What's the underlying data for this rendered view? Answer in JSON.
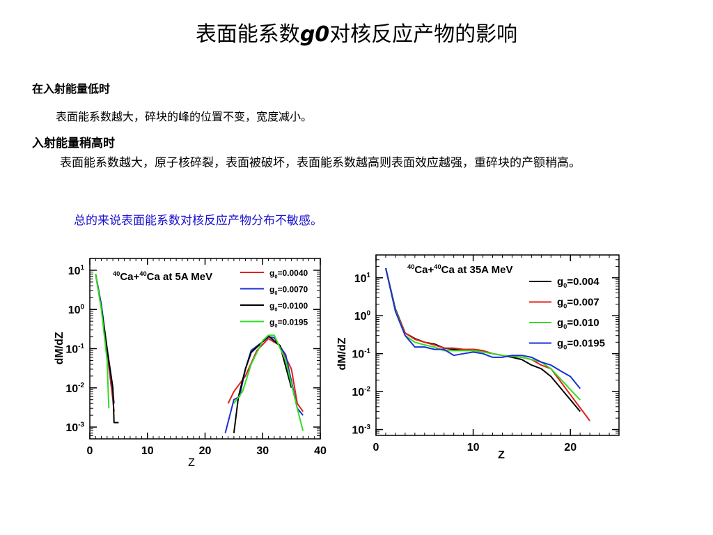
{
  "slide": {
    "title_pre": "表面能系数",
    "title_g": "g0",
    "title_post": "对核反应产物的影响",
    "low_energy_heading": "在入射能量低时",
    "low_energy_text": "表面能系数越大，碎块的峰的位置不变，宽度减小。",
    "high_energy_heading": "入射能量稍高时",
    "high_energy_text": "表面能系数越大，原子核碎裂，表面被破坏，表面能系数越高则表面效应越强，重碎块的产额稍高。",
    "summary": "总的来说表面能系数对核反应产物分布不敏感。",
    "summary_color": "#1a10d0"
  },
  "chart_data": [
    {
      "type": "line",
      "y_scale": "log",
      "annotation": "40Ca+40Ca at 5A MeV",
      "xlabel": "Z",
      "ylabel": "dM/dZ",
      "xlim": [
        0,
        40
      ],
      "ylim": [
        0.0005,
        20
      ],
      "x_ticks": [
        0,
        10,
        20,
        30,
        40
      ],
      "y_ticks": [
        0.001,
        0.01,
        0.1,
        1,
        10
      ],
      "legend_position": "top-right",
      "series": [
        {
          "name": "g0=0.0040",
          "color": "#e0201a",
          "segments": [
            [
              [
                1,
                8
              ],
              [
                2,
                1.2
              ],
              [
                3,
                0.08
              ],
              [
                4,
                0.005
              ],
              [
                4.2,
                0.0025
              ]
            ],
            [
              [
                24,
                0.004
              ],
              [
                25,
                0.008
              ],
              [
                27,
                0.02
              ],
              [
                29,
                0.09
              ],
              [
                31,
                0.18
              ],
              [
                33,
                0.12
              ],
              [
                35,
                0.03
              ],
              [
                36,
                0.004
              ],
              [
                37,
                0.0025
              ]
            ]
          ]
        },
        {
          "name": "g0=0.0070",
          "color": "#1a30d0",
          "segments": [
            [
              [
                1,
                8
              ],
              [
                2,
                1.3
              ],
              [
                3,
                0.1
              ],
              [
                4,
                0.008
              ],
              [
                4.2,
                0.004
              ]
            ],
            [
              [
                23.5,
                0.0007
              ],
              [
                25,
                0.005
              ],
              [
                26,
                0.006
              ],
              [
                27,
                0.03
              ],
              [
                28,
                0.09
              ],
              [
                30,
                0.15
              ],
              [
                31,
                0.2
              ],
              [
                32,
                0.19
              ],
              [
                34,
                0.07
              ],
              [
                36,
                0.003
              ],
              [
                37,
                0.002
              ]
            ]
          ]
        },
        {
          "name": "g0=0.0100",
          "color": "#000000",
          "segments": [
            [
              [
                1,
                8
              ],
              [
                2,
                1.1
              ],
              [
                3,
                0.1
              ],
              [
                4,
                0.01
              ],
              [
                4.2,
                0.0013
              ],
              [
                5,
                0.0013
              ]
            ],
            [
              [
                25,
                0.0007
              ],
              [
                25.8,
                0.006
              ],
              [
                27,
                0.03
              ],
              [
                28,
                0.08
              ],
              [
                30,
                0.15
              ],
              [
                31,
                0.21
              ],
              [
                33,
                0.12
              ],
              [
                35,
                0.01
              ]
            ]
          ]
        },
        {
          "name": "g0=0.0195",
          "color": "#33dd22",
          "segments": [
            [
              [
                1,
                8
              ],
              [
                2,
                1
              ],
              [
                3,
                0.05
              ],
              [
                3.3,
                0.003
              ]
            ],
            [
              [
                25,
                0.004
              ],
              [
                26.5,
                0.008
              ],
              [
                28,
                0.04
              ],
              [
                30,
                0.16
              ],
              [
                31,
                0.22
              ],
              [
                32,
                0.22
              ],
              [
                34,
                0.05
              ],
              [
                36,
                0.003
              ],
              [
                37,
                0.0008
              ]
            ]
          ]
        }
      ]
    },
    {
      "type": "line",
      "y_scale": "log",
      "annotation": "40Ca+40Ca at 35A MeV",
      "xlabel": "Z",
      "ylabel": "dM/dZ",
      "xlim": [
        0,
        25
      ],
      "ylim": [
        0.0007,
        40
      ],
      "x_ticks": [
        0,
        10,
        20
      ],
      "y_ticks": [
        0.001,
        0.01,
        0.1,
        1,
        10
      ],
      "legend_position": "top-right",
      "series": [
        {
          "name": "g0=0.004",
          "color": "#000000",
          "points": [
            [
              1,
              18
            ],
            [
              2,
              1.5
            ],
            [
              3,
              0.35
            ],
            [
              4,
              0.25
            ],
            [
              5,
              0.2
            ],
            [
              6,
              0.18
            ],
            [
              7,
              0.14
            ],
            [
              8,
              0.13
            ],
            [
              9,
              0.13
            ],
            [
              10,
              0.13
            ],
            [
              11,
              0.12
            ],
            [
              12,
              0.1
            ],
            [
              13,
              0.09
            ],
            [
              14,
              0.08
            ],
            [
              15,
              0.07
            ],
            [
              16,
              0.05
            ],
            [
              17,
              0.04
            ],
            [
              18,
              0.025
            ],
            [
              21,
              0.003
            ]
          ]
        },
        {
          "name": "g0=0.007",
          "color": "#e0201a",
          "points": [
            [
              1,
              18
            ],
            [
              2,
              1.4
            ],
            [
              3,
              0.35
            ],
            [
              4,
              0.24
            ],
            [
              5,
              0.2
            ],
            [
              6,
              0.17
            ],
            [
              7,
              0.14
            ],
            [
              8,
              0.14
            ],
            [
              9,
              0.13
            ],
            [
              10,
              0.13
            ],
            [
              11,
              0.12
            ],
            [
              12,
              0.1
            ],
            [
              13,
              0.09
            ],
            [
              14,
              0.085
            ],
            [
              15,
              0.08
            ],
            [
              16,
              0.07
            ],
            [
              17,
              0.05
            ],
            [
              18,
              0.04
            ],
            [
              22,
              0.0017
            ]
          ]
        },
        {
          "name": "g0=0.010",
          "color": "#33dd22",
          "points": [
            [
              1,
              18
            ],
            [
              2,
              1.4
            ],
            [
              3,
              0.3
            ],
            [
              4,
              0.2
            ],
            [
              5,
              0.17
            ],
            [
              6,
              0.15
            ],
            [
              7,
              0.12
            ],
            [
              8,
              0.12
            ],
            [
              9,
              0.12
            ],
            [
              10,
              0.12
            ],
            [
              11,
              0.11
            ],
            [
              12,
              0.1
            ],
            [
              13,
              0.09
            ],
            [
              14,
              0.085
            ],
            [
              15,
              0.08
            ],
            [
              16,
              0.07
            ],
            [
              17,
              0.06
            ],
            [
              18,
              0.04
            ],
            [
              21,
              0.006
            ]
          ]
        },
        {
          "name": "g0=0.0195",
          "color": "#1a30d0",
          "points": [
            [
              1,
              18
            ],
            [
              2,
              1.3
            ],
            [
              3,
              0.3
            ],
            [
              4,
              0.15
            ],
            [
              5,
              0.15
            ],
            [
              6,
              0.13
            ],
            [
              7,
              0.13
            ],
            [
              8,
              0.09
            ],
            [
              9,
              0.1
            ],
            [
              10,
              0.11
            ],
            [
              11,
              0.1
            ],
            [
              12,
              0.08
            ],
            [
              13,
              0.08
            ],
            [
              14,
              0.09
            ],
            [
              15,
              0.09
            ],
            [
              16,
              0.08
            ],
            [
              17,
              0.06
            ],
            [
              18,
              0.05
            ],
            [
              19,
              0.035
            ],
            [
              20,
              0.025
            ],
            [
              21,
              0.012
            ]
          ]
        }
      ]
    }
  ]
}
